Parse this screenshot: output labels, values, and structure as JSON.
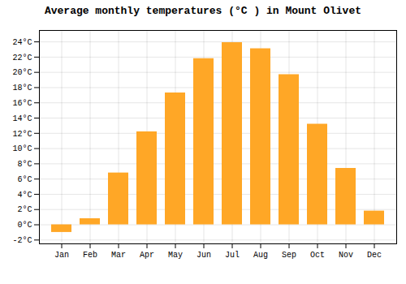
{
  "chart_data": {
    "type": "bar",
    "title": "Average monthly temperatures (°C ) in Mount Olivet",
    "categories": [
      "Jan",
      "Feb",
      "Mar",
      "Apr",
      "May",
      "Jun",
      "Jul",
      "Aug",
      "Sep",
      "Oct",
      "Nov",
      "Dec"
    ],
    "values": [
      -1.0,
      0.8,
      6.8,
      12.2,
      17.3,
      21.8,
      23.9,
      23.1,
      19.7,
      13.2,
      7.4,
      1.8
    ],
    "color": "#FFA726",
    "ylim": [
      -2.5,
      25.5
    ],
    "yticks": [
      {
        "value": -2,
        "label": "-2°C"
      },
      {
        "value": 0,
        "label": "0°C"
      },
      {
        "value": 2,
        "label": "2°C"
      },
      {
        "value": 4,
        "label": "4°C"
      },
      {
        "value": 6,
        "label": "6°C"
      },
      {
        "value": 8,
        "label": "8°C"
      },
      {
        "value": 10,
        "label": "10°C"
      },
      {
        "value": 12,
        "label": "12°C"
      },
      {
        "value": 14,
        "label": "14°C"
      },
      {
        "value": 16,
        "label": "16°C"
      },
      {
        "value": 18,
        "label": "18°C"
      },
      {
        "value": 20,
        "label": "20°C"
      },
      {
        "value": 22,
        "label": "22°C"
      },
      {
        "value": 24,
        "label": "24°C"
      }
    ],
    "grid": true
  }
}
